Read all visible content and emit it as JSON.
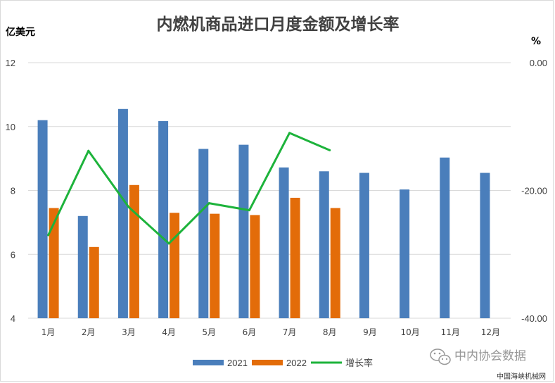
{
  "chart_data": {
    "type": "bar",
    "title": "内燃机商品进口月度金额及增长率",
    "ylabel_left": "亿美元",
    "ylabel_right": "%",
    "categories": [
      "1月",
      "2月",
      "3月",
      "4月",
      "5月",
      "6月",
      "7月",
      "8月",
      "9月",
      "10月",
      "11月",
      "12月"
    ],
    "series": [
      {
        "name": "2021",
        "kind": "bar",
        "axis": "left",
        "color": "#4a7ebb",
        "values": [
          10.2,
          7.2,
          10.55,
          10.17,
          9.3,
          9.43,
          8.72,
          8.6,
          8.55,
          8.03,
          9.03,
          8.55
        ]
      },
      {
        "name": "2022",
        "kind": "bar",
        "axis": "left",
        "color": "#e36c09",
        "values": [
          7.45,
          6.23,
          8.17,
          7.3,
          7.27,
          7.23,
          7.77,
          7.45,
          null,
          null,
          null,
          null
        ]
      },
      {
        "name": "增长率",
        "kind": "line",
        "axis": "right",
        "color": "#1db33b",
        "values": [
          -27,
          -13.8,
          -22.6,
          -28.3,
          -22,
          -23.1,
          -11,
          -13.7,
          null,
          null,
          null,
          null
        ]
      }
    ],
    "y_left": {
      "min": 4,
      "max": 12,
      "ticks": [
        "4",
        "6",
        "8",
        "10",
        "12"
      ],
      "tick_values": [
        4,
        6,
        8,
        10,
        12
      ]
    },
    "y_right": {
      "min": -40,
      "max": 0,
      "ticks": [
        "-40.00",
        "-20.00",
        "0.00"
      ],
      "tick_values": [
        -40,
        -20,
        0
      ]
    },
    "grid": true,
    "legend": {
      "position": "bottom",
      "items": [
        "2021",
        "2022",
        "增长率"
      ]
    }
  },
  "watermark": "中内协会数据",
  "source_text": "中国海峡机械网"
}
